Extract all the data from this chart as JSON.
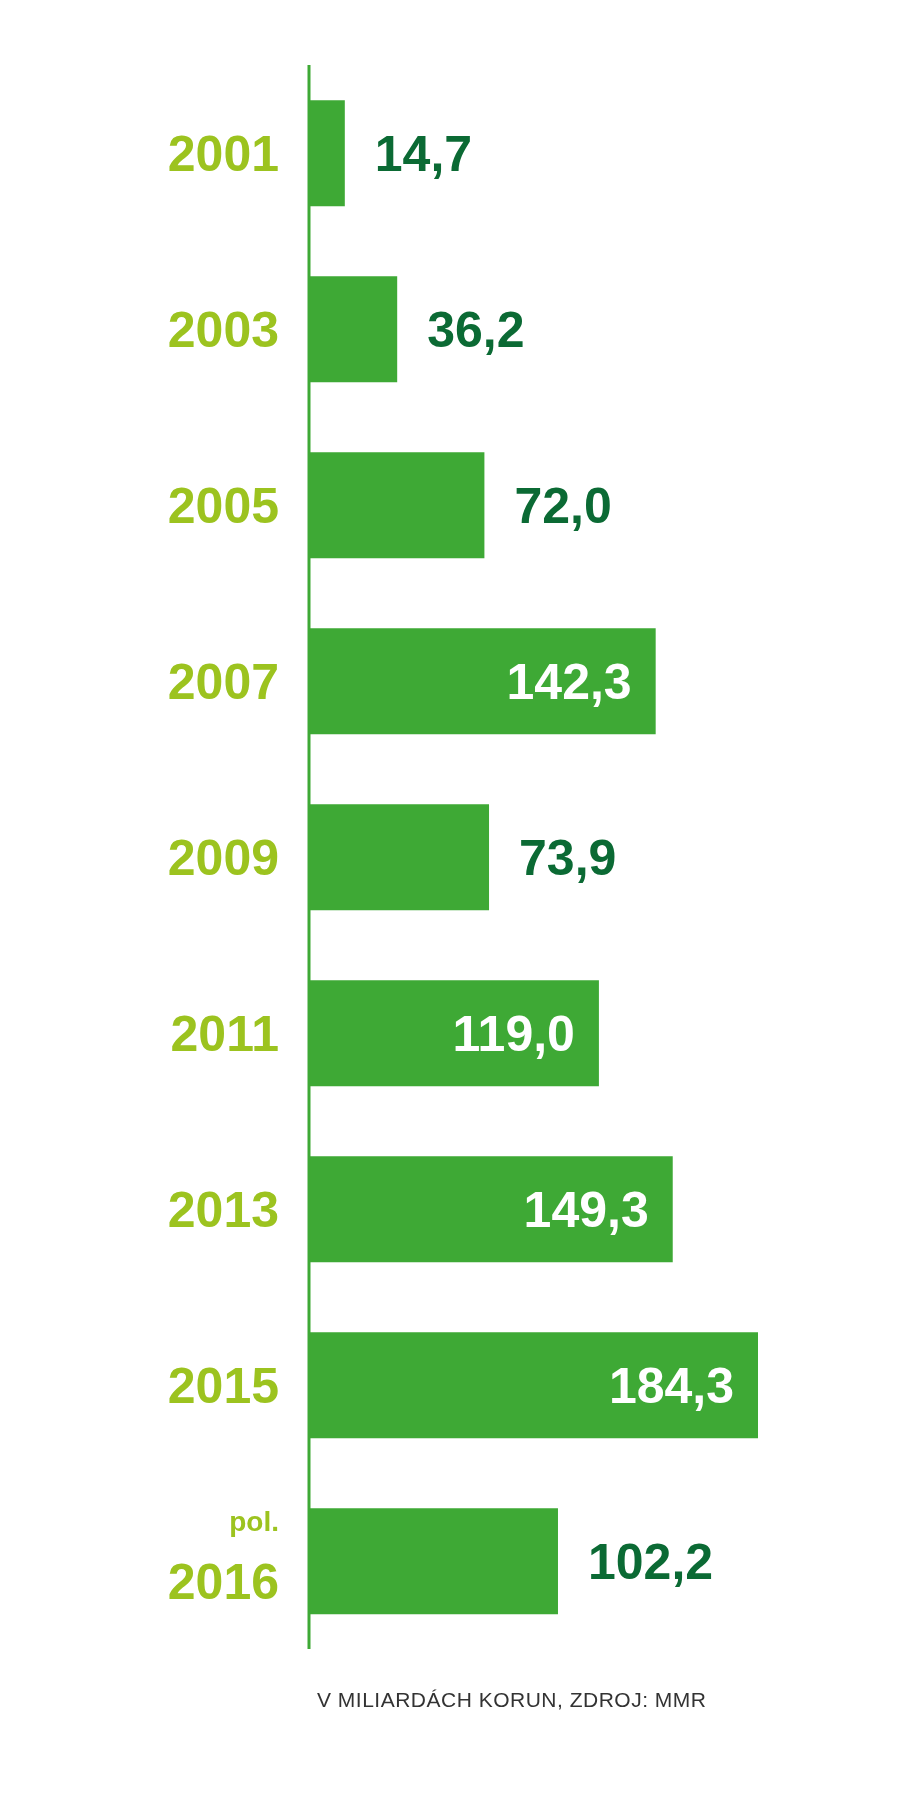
{
  "chart_data": {
    "type": "bar",
    "orientation": "horizontal",
    "categories": [
      "2001",
      "2003",
      "2005",
      "2007",
      "2009",
      "2011",
      "2013",
      "2015",
      "pol. 2016"
    ],
    "values": [
      14.7,
      36.2,
      72.0,
      142.3,
      73.9,
      119.0,
      149.3,
      184.3,
      102.2
    ],
    "color": "#3ea935",
    "value_labels": [
      "14,7",
      "36,2",
      "72,0",
      "142,3",
      "73,9",
      "119,0",
      "149,3",
      "184,3",
      "102,2"
    ],
    "annotations": [
      "V MILIARDÁCH KORUN, ZDROJ: MMR"
    ]
  }
}
